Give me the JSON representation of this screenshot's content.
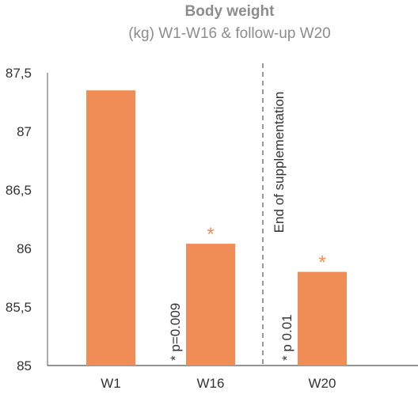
{
  "chart_data": {
    "type": "bar",
    "title": "Body weight",
    "subtitle": "(kg) W1-W16 & follow-up W20",
    "categories": [
      "W1",
      "W16",
      "W20"
    ],
    "values": [
      87.35,
      86.04,
      85.8
    ],
    "ylim": [
      85,
      87.5
    ],
    "yticks": [
      "85",
      "85,5",
      "86",
      "86,5",
      "87",
      "87,5"
    ],
    "ytick_values": [
      85,
      85.5,
      86,
      86.5,
      87,
      87.5
    ],
    "grid": false,
    "bar_color": "#f08c55",
    "star_color": "#f08c55",
    "significance": [
      "",
      "*",
      "*"
    ],
    "pvalues": [
      "",
      "* p=0.009",
      "* p 0.01"
    ],
    "divider_label": "End of supplementation"
  }
}
